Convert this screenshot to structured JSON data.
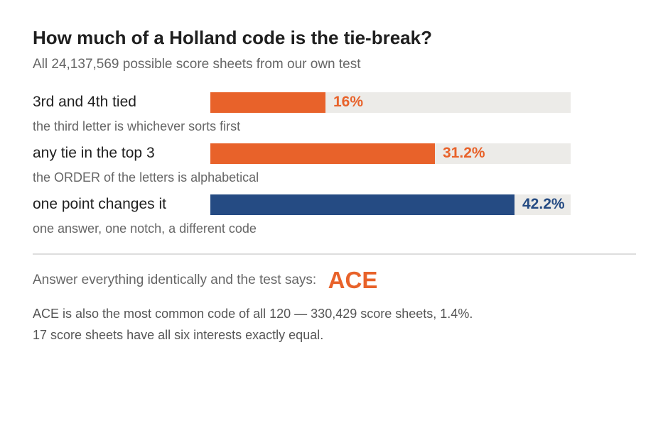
{
  "header": {
    "title": "How much of a Holland code is the tie-break?",
    "subtitle": "All 24,137,569 possible score sheets from our own test"
  },
  "chart_data": {
    "type": "bar",
    "orientation": "horizontal",
    "title": "How much of a Holland code is the tie-break?",
    "subtitle": "All 24,137,569 possible score sheets from our own test",
    "xlim": [
      0,
      50
    ],
    "grid": false,
    "categories": [
      "3rd and 4th tied",
      "any tie in the top 3",
      "one point changes it"
    ],
    "values": [
      16,
      31.2,
      42.2
    ],
    "value_labels": [
      "16%",
      "31.2%",
      "42.2%"
    ],
    "notes": [
      "the third letter is whichever sorts first",
      "the ORDER of the letters is alphabetical",
      "one answer, one notch, a different code"
    ],
    "colors": [
      "#e8622a",
      "#e8622a",
      "#254b83"
    ]
  },
  "answer": {
    "text": "Answer everything identically and the test says:",
    "code": "ACE"
  },
  "footnotes": [
    "ACE is also the most common code of all 120 — 330,429 score sheets, 1.4%.",
    "17 score sheets have all six interests exactly equal."
  ]
}
